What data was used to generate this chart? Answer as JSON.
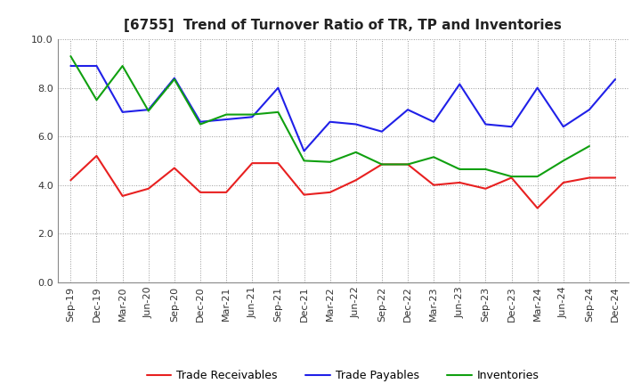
{
  "title": "[6755]  Trend of Turnover Ratio of TR, TP and Inventories",
  "x_labels": [
    "Sep-19",
    "Dec-19",
    "Mar-20",
    "Jun-20",
    "Sep-20",
    "Dec-20",
    "Mar-21",
    "Jun-21",
    "Sep-21",
    "Dec-21",
    "Mar-22",
    "Jun-22",
    "Sep-22",
    "Dec-22",
    "Mar-23",
    "Jun-23",
    "Sep-23",
    "Dec-23",
    "Mar-24",
    "Jun-24",
    "Sep-24",
    "Dec-24"
  ],
  "trade_receivables": [
    4.2,
    5.2,
    3.55,
    3.85,
    4.7,
    3.7,
    3.7,
    4.9,
    4.9,
    3.6,
    3.7,
    4.2,
    4.85,
    4.85,
    4.0,
    4.1,
    3.85,
    4.3,
    3.05,
    4.1,
    4.3,
    4.3
  ],
  "trade_payables": [
    8.9,
    8.9,
    7.0,
    7.1,
    8.4,
    6.6,
    6.7,
    6.8,
    8.0,
    5.4,
    6.6,
    6.5,
    6.2,
    7.1,
    6.6,
    8.15,
    6.5,
    6.4,
    8.0,
    6.4,
    7.1,
    8.35
  ],
  "inventories": [
    9.3,
    7.5,
    8.9,
    7.05,
    8.35,
    6.5,
    6.9,
    6.9,
    7.0,
    5.0,
    4.95,
    5.35,
    4.85,
    4.85,
    5.15,
    4.65,
    4.65,
    4.35,
    4.35,
    5.0,
    5.6,
    null
  ],
  "ylim": [
    0.0,
    10.0
  ],
  "yticks": [
    0.0,
    2.0,
    4.0,
    6.0,
    8.0,
    10.0
  ],
  "line_colors": {
    "trade_receivables": "#e82020",
    "trade_payables": "#2020e8",
    "inventories": "#10a010"
  },
  "legend_labels": [
    "Trade Receivables",
    "Trade Payables",
    "Inventories"
  ],
  "background_color": "#ffffff",
  "grid_color": "#999999",
  "title_fontsize": 11,
  "label_fontsize": 8,
  "legend_fontsize": 9
}
